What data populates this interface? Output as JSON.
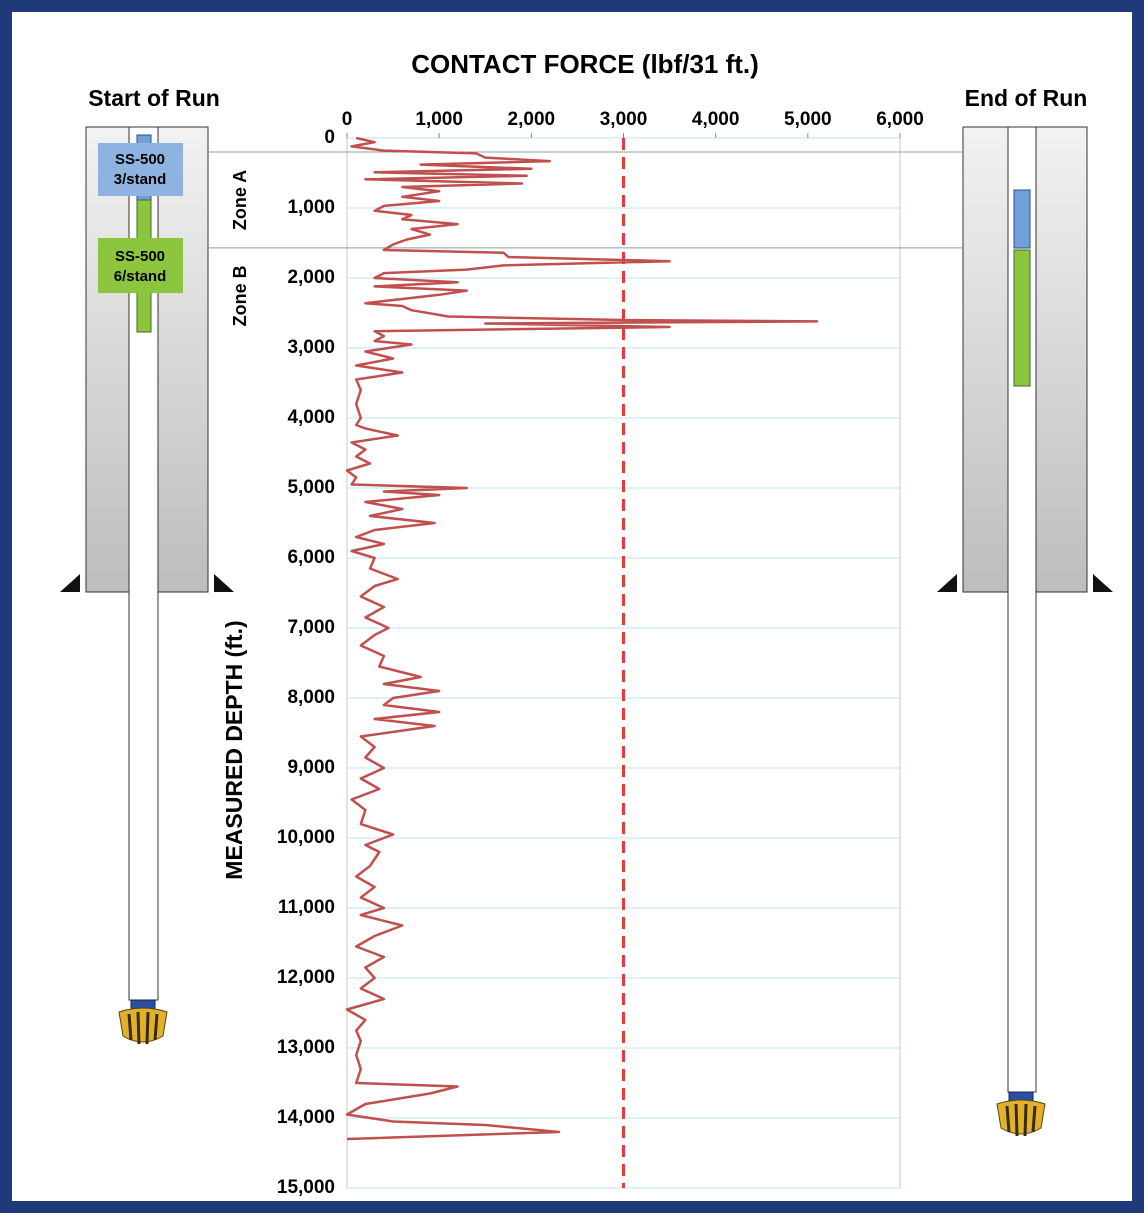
{
  "chart_data": {
    "type": "line",
    "title": "CONTACT FORCE (lbf/31 ft.)",
    "y_label": "MEASURED DEPTH (ft.)",
    "color": "#c0504d",
    "xlim": [
      0,
      6000
    ],
    "xticks": [
      0,
      {
        "value": 1000,
        "label": "1,000"
      },
      {
        "value": 2000,
        "label": "2,000"
      },
      {
        "value": 3000,
        "label": "3,000"
      },
      {
        "value": 4000,
        "label": "4,000"
      },
      {
        "value": 5000,
        "label": "5,000"
      },
      {
        "value": 6000,
        "label": "6,000"
      }
    ],
    "ylim": [
      0,
      15000
    ],
    "y_inverted": true,
    "yticks": [
      0,
      {
        "value": 1000,
        "label": "1,000"
      },
      {
        "value": 2000,
        "label": "2,000"
      },
      {
        "value": 3000,
        "label": "3,000"
      },
      {
        "value": 4000,
        "label": "4,000"
      },
      {
        "value": 5000,
        "label": "5,000"
      },
      {
        "value": 6000,
        "label": "6,000"
      },
      {
        "value": 7000,
        "label": "7,000"
      },
      {
        "value": 8000,
        "label": "8,000"
      },
      {
        "value": 9000,
        "label": "9,000"
      },
      {
        "value": 10000,
        "label": "10,000"
      },
      {
        "value": 11000,
        "label": "11,000"
      },
      {
        "value": 12000,
        "label": "12,000"
      },
      {
        "value": 13000,
        "label": "13,000"
      },
      {
        "value": 14000,
        "label": "14,000"
      },
      {
        "value": 15000,
        "label": "15,000"
      }
    ],
    "grid": true,
    "reference_line": {
      "value": 3000,
      "color": "#e8383b"
    },
    "zones": [
      {
        "label": "Zone A",
        "top": 200
      },
      {
        "label": "Zone B",
        "top": 1570
      }
    ],
    "depths": [
      0,
      60,
      120,
      180,
      220,
      280,
      330,
      380,
      440,
      490,
      540,
      590,
      650,
      700,
      760,
      840,
      900,
      970,
      1040,
      1100,
      1160,
      1230,
      1300,
      1380,
      1450,
      1520,
      1600,
      1640,
      1700,
      1760,
      1820,
      1880,
      1930,
      2000,
      2060,
      2120,
      2180,
      2240,
      2300,
      2360,
      2400,
      2460,
      2550,
      2600,
      2620,
      2650,
      2700,
      2760,
      2830,
      2900,
      2950,
      3050,
      3150,
      3250,
      3350,
      3450,
      3600,
      3800,
      4000,
      4100,
      4150,
      4250,
      4350,
      4450,
      4550,
      4650,
      4750,
      4850,
      4950,
      5000,
      5050,
      5100,
      5200,
      5300,
      5400,
      5500,
      5600,
      5700,
      5800,
      5900,
      6000,
      6150,
      6300,
      6400,
      6550,
      6700,
      6850,
      7000,
      7100,
      7250,
      7400,
      7550,
      7700,
      7800,
      7900,
      8000,
      8100,
      8200,
      8300,
      8400,
      8550,
      8700,
      8850,
      9000,
      9150,
      9300,
      9450,
      9600,
      9800,
      9950,
      10100,
      10200,
      10400,
      10550,
      10700,
      10850,
      11000,
      11100,
      11250,
      11400,
      11550,
      11700,
      11850,
      12000,
      12150,
      12300,
      12450,
      12600,
      12750,
      12900,
      13100,
      13300,
      13500,
      13550,
      13650,
      13800,
      13950,
      14050,
      14100,
      14200,
      14300
    ],
    "values": [
      100,
      300,
      50,
      400,
      1400,
      1500,
      2200,
      800,
      2000,
      300,
      1950,
      200,
      1900,
      600,
      1000,
      600,
      1000,
      400,
      300,
      700,
      600,
      1200,
      700,
      900,
      650,
      500,
      400,
      1700,
      1750,
      3500,
      1700,
      1300,
      400,
      300,
      1200,
      300,
      1300,
      1000,
      600,
      200,
      600,
      700,
      1100,
      3000,
      5100,
      1500,
      3500,
      300,
      400,
      300,
      700,
      200,
      500,
      100,
      600,
      100,
      150,
      100,
      150,
      100,
      200,
      550,
      50,
      200,
      100,
      250,
      0,
      100,
      50,
      1300,
      400,
      1000,
      200,
      600,
      250,
      950,
      300,
      100,
      400,
      50,
      300,
      250,
      550,
      300,
      150,
      400,
      200,
      450,
      300,
      150,
      400,
      350,
      800,
      400,
      1000,
      500,
      400,
      1000,
      300,
      950,
      150,
      300,
      200,
      400,
      150,
      350,
      50,
      200,
      150,
      500,
      200,
      350,
      250,
      100,
      300,
      150,
      400,
      150,
      600,
      300,
      100,
      400,
      200,
      300,
      150,
      400,
      0,
      200,
      100,
      150,
      100,
      150,
      100,
      1200,
      900,
      200,
      0,
      500,
      1500,
      2300,
      0
    ]
  },
  "diagram": {
    "start_label": "Start of Run",
    "end_label": "End of Run",
    "tool_a": [
      "SS-500",
      "3/stand"
    ],
    "tool_b": [
      "SS-500",
      "6/stand"
    ]
  }
}
